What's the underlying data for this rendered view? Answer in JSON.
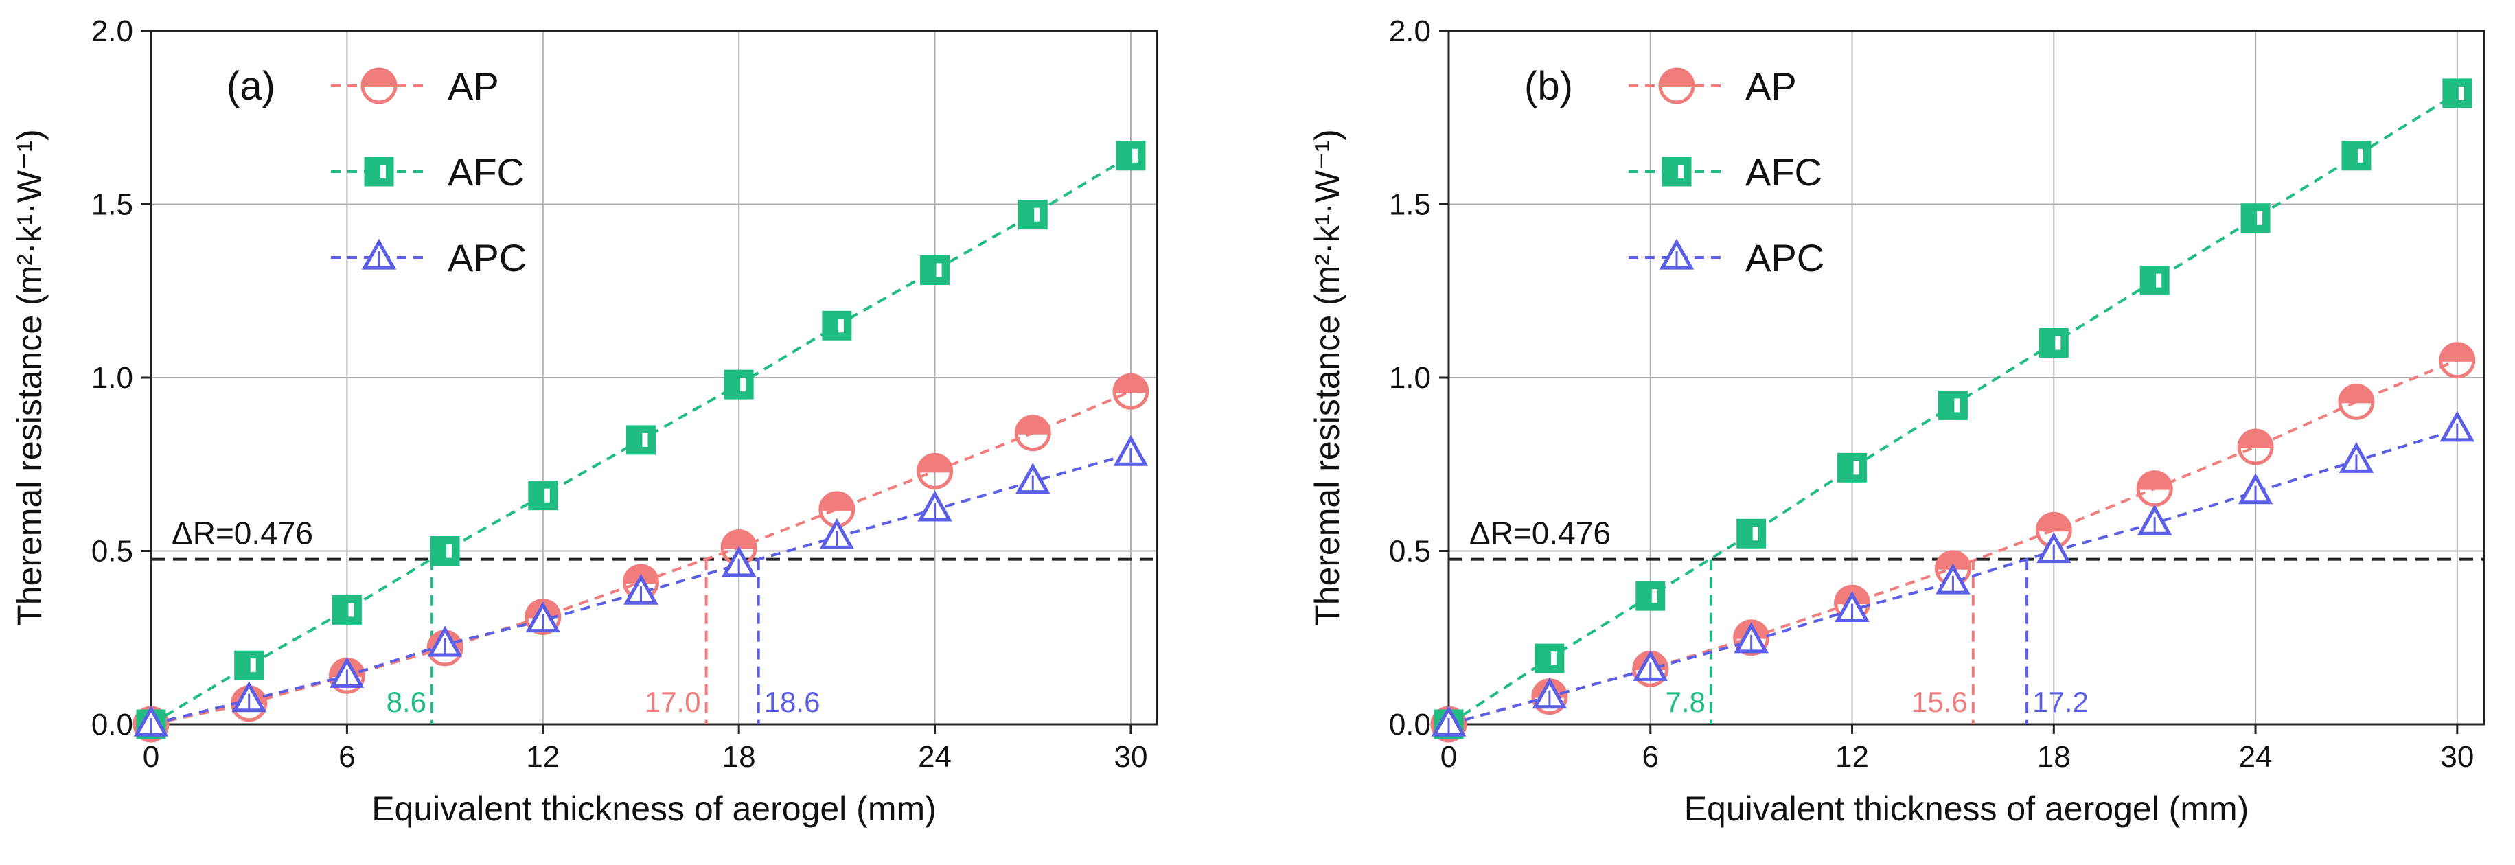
{
  "chart_data": [
    {
      "type": "line",
      "panel_label": "(a)",
      "xlabel": "Equivalent thickness of aerogel (mm)",
      "ylabel": "Theremal resistance (m²·k¹·W⁻¹)",
      "xlim": [
        0,
        30.8
      ],
      "ylim": [
        0,
        2.0
      ],
      "xticks": [
        "0",
        "6",
        "12",
        "18",
        "24",
        "30"
      ],
      "yticks": [
        "0.0",
        "0.5",
        "1.0",
        "1.5",
        "2.0"
      ],
      "grid": true,
      "legend_position": "top-left",
      "x": [
        0,
        3,
        6,
        9,
        12,
        15,
        18,
        21,
        24,
        27,
        30
      ],
      "series": [
        {
          "name": "AP",
          "marker": "half-circle",
          "color": "#f07c7c",
          "values": [
            0.0,
            0.06,
            0.14,
            0.22,
            0.31,
            0.41,
            0.51,
            0.62,
            0.73,
            0.84,
            0.96
          ]
        },
        {
          "name": "AFC",
          "marker": "square",
          "color": "#1fbd82",
          "values": [
            0.0,
            0.17,
            0.33,
            0.5,
            0.66,
            0.82,
            0.98,
            1.15,
            1.31,
            1.47,
            1.64
          ]
        },
        {
          "name": "APC",
          "marker": "triangle",
          "color": "#5b5ee6",
          "values": [
            0.0,
            0.07,
            0.14,
            0.23,
            0.3,
            0.38,
            0.46,
            0.54,
            0.62,
            0.7,
            0.78
          ]
        }
      ],
      "reference_line": {
        "label": "ΔR=0.476",
        "y": 0.476
      },
      "intercepts": [
        {
          "label": "8.6",
          "x": 8.6,
          "series": "AFC"
        },
        {
          "label": "17.0",
          "x": 17.0,
          "series": "AP"
        },
        {
          "label": "18.6",
          "x": 18.6,
          "series": "APC"
        }
      ]
    },
    {
      "type": "line",
      "panel_label": "(b)",
      "xlabel": "Equivalent thickness of aerogel (mm)",
      "ylabel": "Theremal resistance (m²·k¹·W⁻¹)",
      "xlim": [
        0,
        30.8
      ],
      "ylim": [
        0,
        2.0
      ],
      "xticks": [
        "0",
        "6",
        "12",
        "18",
        "24",
        "30"
      ],
      "yticks": [
        "0.0",
        "0.5",
        "1.0",
        "1.5",
        "2.0"
      ],
      "grid": true,
      "legend_position": "top-left",
      "x": [
        0,
        3,
        6,
        9,
        12,
        15,
        18,
        21,
        24,
        27,
        30
      ],
      "series": [
        {
          "name": "AP",
          "marker": "half-circle",
          "color": "#f07c7c",
          "values": [
            0.0,
            0.08,
            0.16,
            0.25,
            0.35,
            0.45,
            0.56,
            0.68,
            0.8,
            0.93,
            1.05
          ]
        },
        {
          "name": "AFC",
          "marker": "square",
          "color": "#1fbd82",
          "values": [
            0.0,
            0.19,
            0.37,
            0.55,
            0.74,
            0.92,
            1.1,
            1.28,
            1.46,
            1.64,
            1.82
          ]
        },
        {
          "name": "APC",
          "marker": "triangle",
          "color": "#5b5ee6",
          "values": [
            0.0,
            0.08,
            0.16,
            0.24,
            0.33,
            0.41,
            0.5,
            0.58,
            0.67,
            0.76,
            0.85
          ]
        }
      ],
      "reference_line": {
        "label": "ΔR=0.476",
        "y": 0.476
      },
      "intercepts": [
        {
          "label": "7.8",
          "x": 7.8,
          "series": "AFC"
        },
        {
          "label": "15.6",
          "x": 15.6,
          "series": "AP"
        },
        {
          "label": "17.2",
          "x": 17.2,
          "series": "APC"
        }
      ]
    }
  ]
}
